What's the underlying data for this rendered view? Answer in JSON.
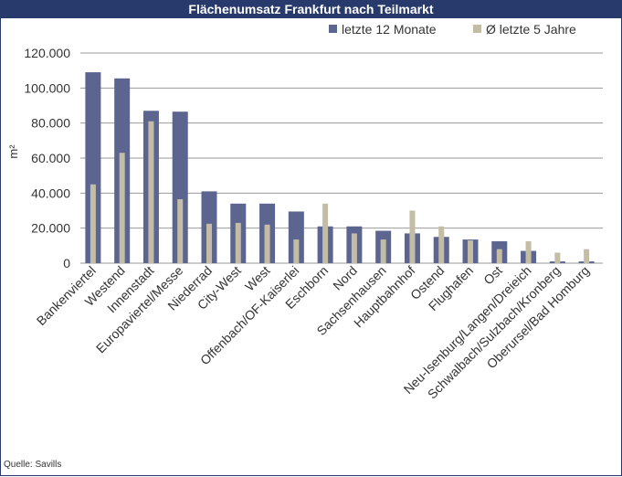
{
  "source": "Quelle: Savills",
  "colors": {
    "header_bg": "#283a6b",
    "series1": "#5b6590",
    "series2": "#c4bda6",
    "grid": "#9a9a9a",
    "text": "#333333"
  },
  "chart_data": {
    "type": "bar",
    "title": "Flächenumsatz Frankfurt nach Teilmarkt",
    "xlabel": "",
    "ylabel": "m²",
    "ylim": [
      0,
      120000
    ],
    "yticks": [
      0,
      20000,
      40000,
      60000,
      80000,
      100000,
      120000
    ],
    "ytick_labels": [
      "0",
      "20.000",
      "40.000",
      "60.000",
      "80.000",
      "100.000",
      "120.000"
    ],
    "grid": true,
    "legend_position": "top-right",
    "categories": [
      "Bankenviertel",
      "Westend",
      "Innenstadt",
      "Europaviertel/Messe",
      "Niederrad",
      "City-West",
      "West",
      "Offenbach/OF-Kaiserlei",
      "Eschborn",
      "Nord",
      "Sachsenhausen",
      "Hauptbahnhof",
      "Ostend",
      "Flughafen",
      "Ost",
      "Neu-Isenburg/Langen/Dreieich",
      "Schwalbach/Sulzbach/Kronberg",
      "Oberursel/Bad Homburg"
    ],
    "series": [
      {
        "name": "letzte 12 Monate",
        "values": [
          109000,
          105500,
          87000,
          86500,
          41000,
          34000,
          34000,
          29500,
          21000,
          21000,
          18500,
          17000,
          15000,
          13500,
          12500,
          7000,
          1000,
          1000
        ]
      },
      {
        "name": "Ø letzte 5 Jahre",
        "values": [
          45000,
          63000,
          81000,
          36500,
          22500,
          23000,
          22000,
          13500,
          34000,
          17000,
          13500,
          30000,
          21000,
          13000,
          8000,
          12500,
          6000,
          8000
        ]
      }
    ]
  }
}
